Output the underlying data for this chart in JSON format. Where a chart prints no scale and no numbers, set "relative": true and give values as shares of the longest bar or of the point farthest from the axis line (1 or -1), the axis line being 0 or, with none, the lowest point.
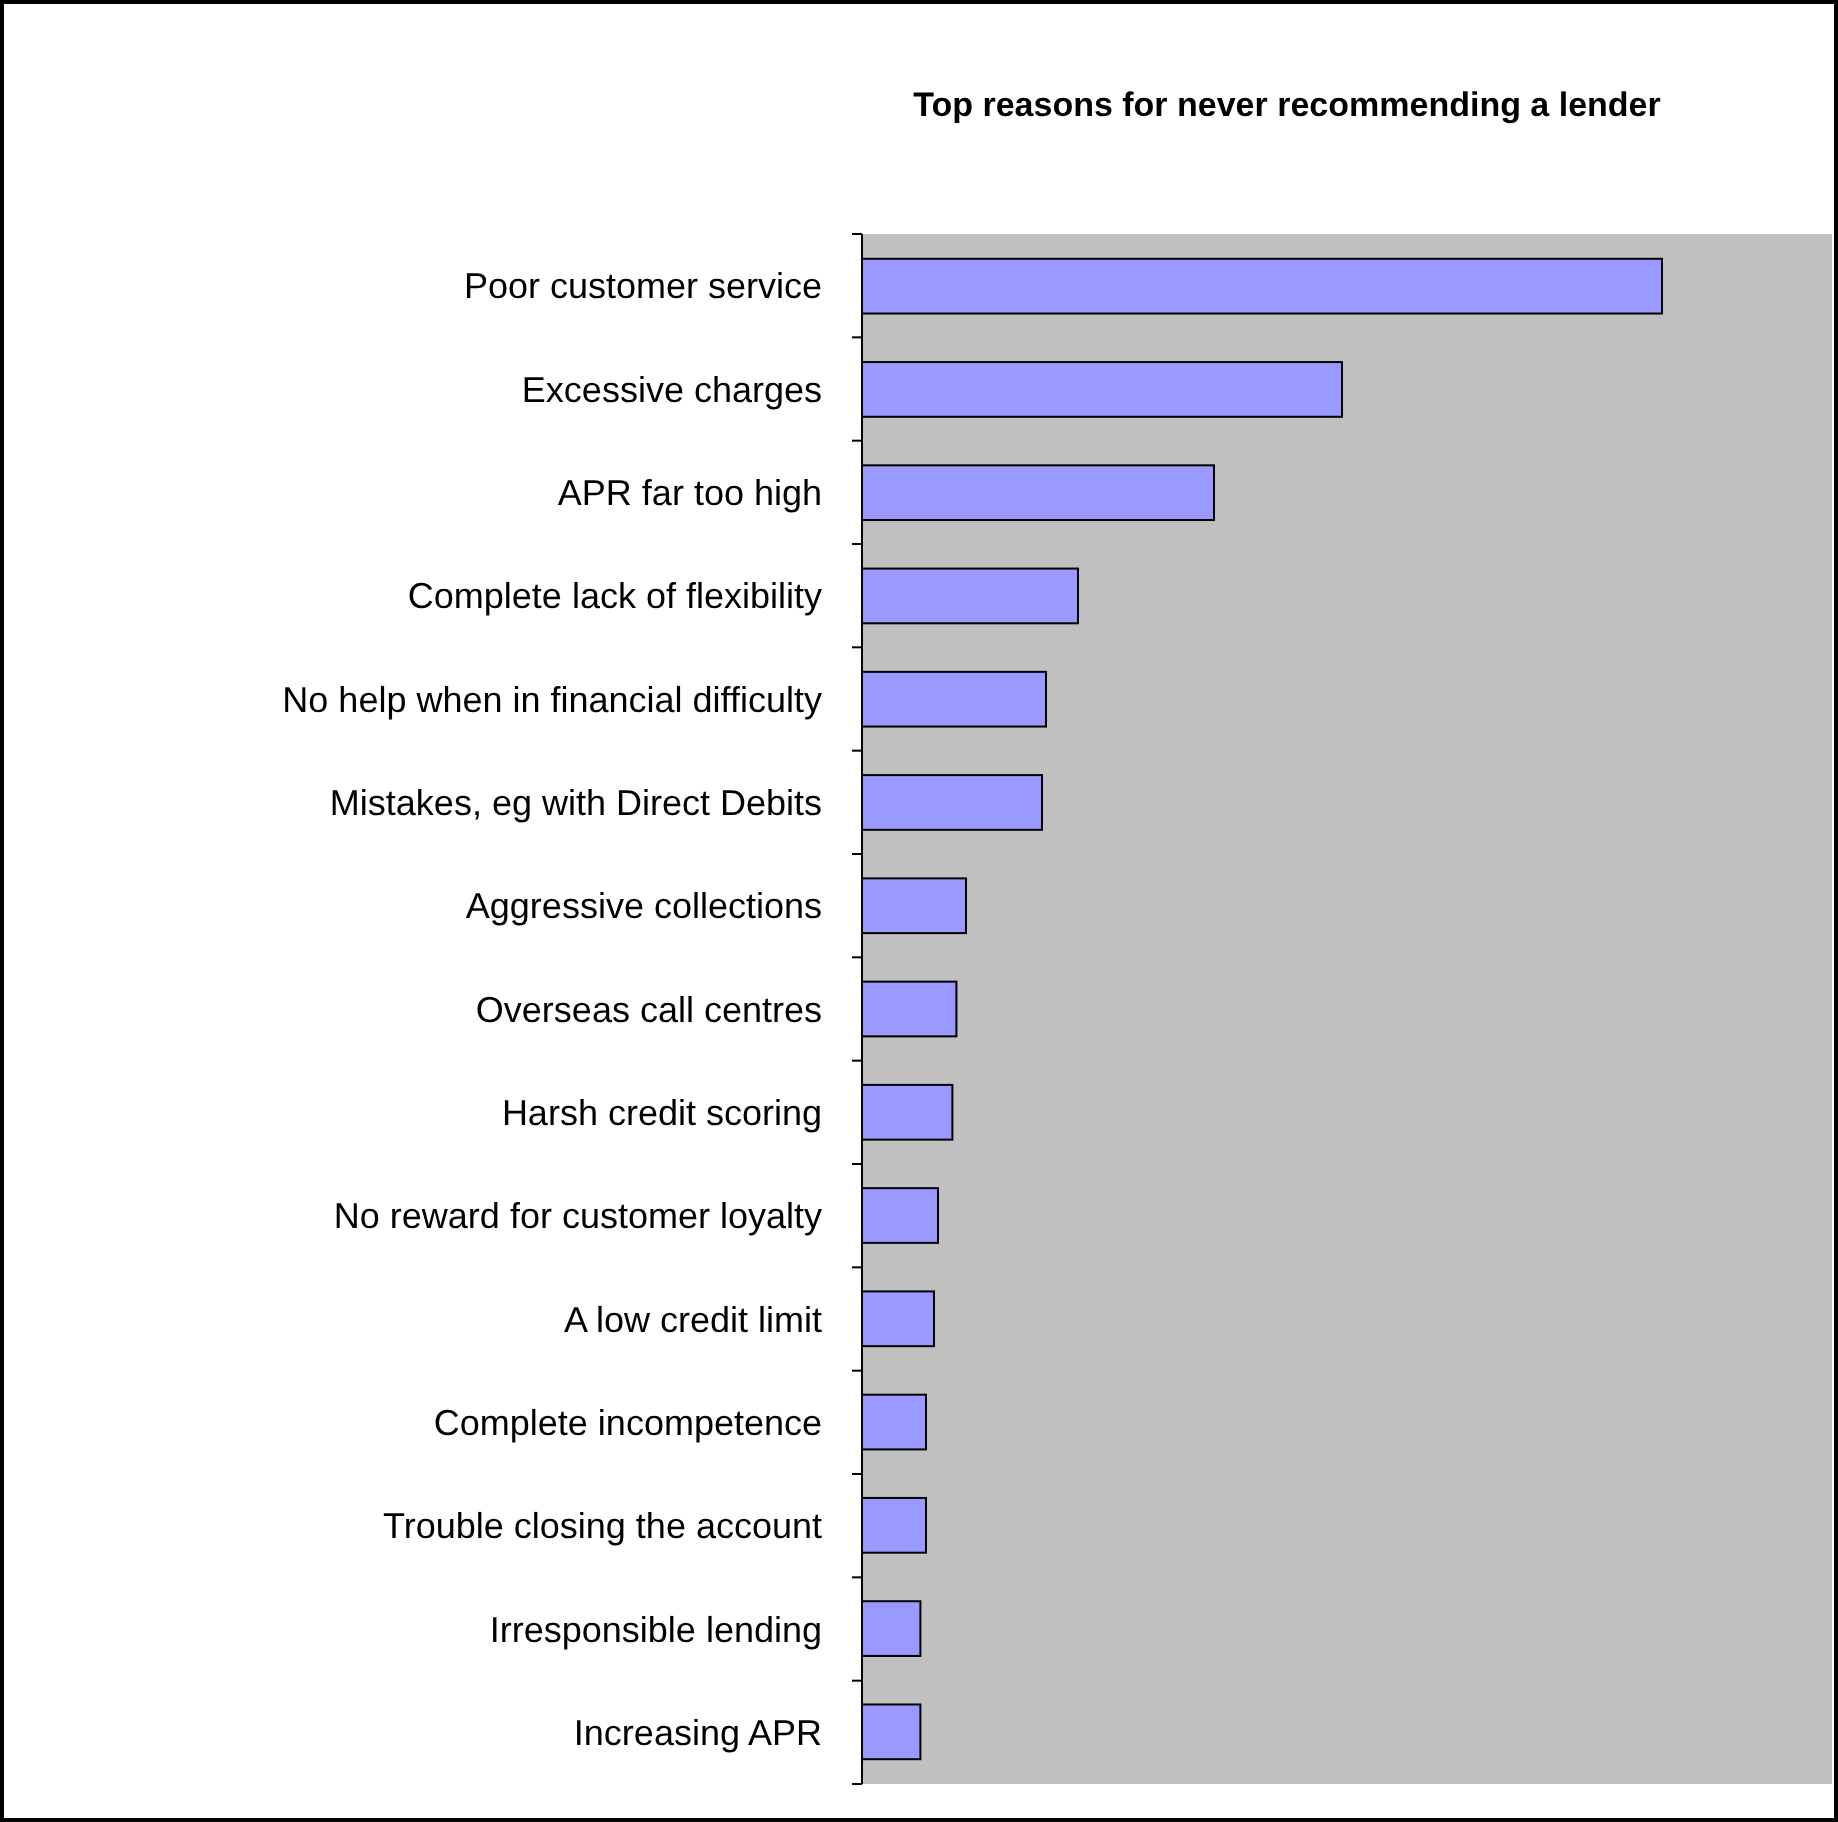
{
  "chart_data": {
    "type": "bar",
    "orientation": "horizontal",
    "relative": true,
    "title": "Top reasons for never recommending a lender",
    "categories": [
      "Poor customer service",
      "Excessive charges",
      "APR far too high",
      "Complete lack of flexibility",
      "No help when in financial difficulty",
      "Mistakes, eg with Direct Debits",
      "Aggressive collections",
      "Overseas call centres",
      "Harsh credit scoring",
      "No reward for customer loyalty",
      "A low credit limit",
      "Complete incompetence",
      "Trouble closing the account",
      "Irresponsible lending",
      "Increasing APR"
    ],
    "values": [
      1,
      0.6,
      0.44,
      0.27,
      0.23,
      0.225,
      0.13,
      0.118,
      0.113,
      0.095,
      0.09,
      0.08,
      0.08,
      0.073,
      0.073
    ],
    "color": "#9999ff"
  }
}
